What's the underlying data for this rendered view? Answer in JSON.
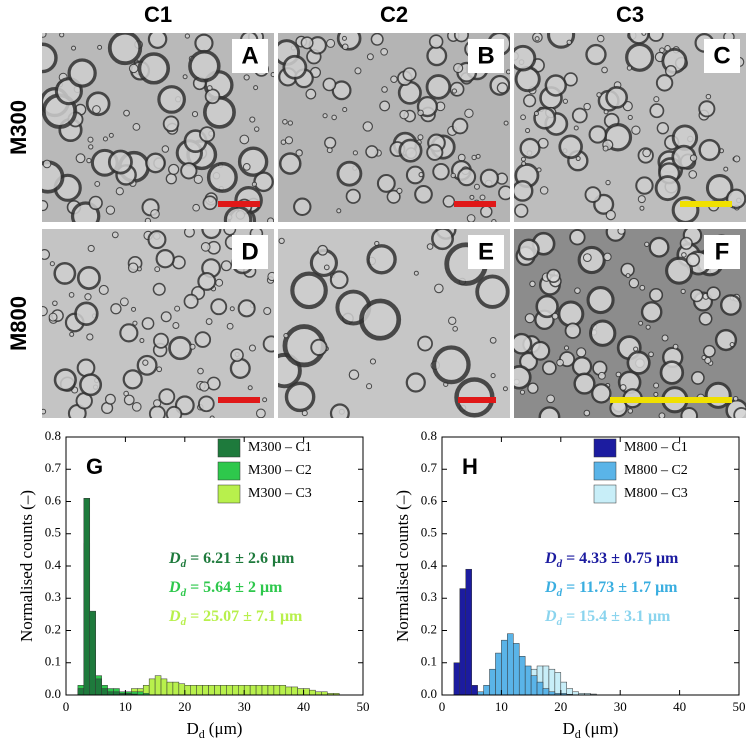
{
  "panels": {
    "columns": [
      "C1",
      "C2",
      "C3"
    ],
    "rows": [
      "M300",
      "M800"
    ],
    "letters": [
      "A",
      "B",
      "C",
      "D",
      "E",
      "F"
    ]
  },
  "chart_data": [
    {
      "type": "histogram",
      "panel": "G",
      "xlabel": {
        "symbol": "D",
        "sub": "d",
        "unit": "(μm)"
      },
      "ylabel": "Normalised counts (–)",
      "xlim": [
        0,
        50
      ],
      "xticks": [
        0,
        10,
        20,
        30,
        40,
        50
      ],
      "ylim": [
        0,
        0.8
      ],
      "yticks": [
        {
          "value": 0,
          "label": "0.0"
        },
        0.1,
        0.2,
        0.3,
        0.4,
        0.5,
        0.6,
        0.7,
        0.8
      ],
      "series": [
        {
          "name": "M300 – C1",
          "color": "#1e7a3c",
          "bins": [
            2,
            3,
            4,
            5,
            6,
            7,
            8,
            9,
            10,
            11,
            12
          ],
          "values": [
            0.02,
            0.61,
            0.26,
            0.05,
            0.02,
            0.01,
            0.01,
            0.005,
            0.005,
            0.003
          ]
        },
        {
          "name": "M300 – C2",
          "color": "#2ec84c",
          "bins": [
            2,
            3,
            4,
            5,
            6,
            7,
            8,
            9,
            10,
            11,
            12,
            13,
            14
          ],
          "values": [
            0.03,
            0.47,
            0.14,
            0.06,
            0.03,
            0.02,
            0.02,
            0.01,
            0.01,
            0.01,
            0.01,
            0.005
          ]
        },
        {
          "name": "M300 – C3",
          "color": "#b8f04c",
          "bins": [
            10,
            11,
            12,
            13,
            14,
            15,
            16,
            17,
            18,
            19,
            20,
            21,
            22,
            23,
            24,
            25,
            26,
            27,
            28,
            29,
            30,
            31,
            32,
            33,
            34,
            35,
            36,
            37,
            38,
            39,
            40,
            41,
            42,
            43,
            44,
            45,
            46
          ],
          "values": [
            0.01,
            0.02,
            0.02,
            0.03,
            0.05,
            0.06,
            0.05,
            0.04,
            0.04,
            0.035,
            0.03,
            0.03,
            0.03,
            0.03,
            0.03,
            0.03,
            0.03,
            0.03,
            0.03,
            0.03,
            0.03,
            0.03,
            0.03,
            0.03,
            0.03,
            0.03,
            0.03,
            0.025,
            0.025,
            0.02,
            0.02,
            0.015,
            0.01,
            0.01,
            0.005,
            0.005
          ]
        }
      ],
      "annotations": [
        {
          "symbol": "D",
          "sub": "d",
          "text": " = 6.21 ± 2.6 μm",
          "color": "#1e7a3c"
        },
        {
          "symbol": "D",
          "sub": "d",
          "text": " = 5.64 ± 2 μm",
          "color": "#2ec84c"
        },
        {
          "symbol": "D",
          "sub": "d",
          "text": " = 25.07 ± 7.1 μm",
          "color": "#b8f04c"
        }
      ]
    },
    {
      "type": "histogram",
      "panel": "H",
      "xlabel": {
        "symbol": "D",
        "sub": "d",
        "unit": "(μm)"
      },
      "ylabel": "Normalised counts (–)",
      "xlim": [
        0,
        50
      ],
      "xticks": [
        0,
        10,
        20,
        30,
        40,
        50
      ],
      "ylim": [
        0,
        0.8
      ],
      "yticks": [
        {
          "value": 0,
          "label": "0.0"
        },
        0.1,
        0.2,
        0.3,
        0.4,
        0.5,
        0.6,
        0.7,
        0.8
      ],
      "series": [
        {
          "name": "M800 – C1",
          "color": "#1c1ca0",
          "bins": [
            2,
            3,
            4,
            5,
            6
          ],
          "values": [
            0.1,
            0.33,
            0.39,
            0.03
          ]
        },
        {
          "name": "M800 – C2",
          "color": "#5ab4e8",
          "bins": [
            6,
            7,
            8,
            9,
            10,
            11,
            12,
            13,
            14,
            15,
            16,
            17,
            18,
            19,
            20,
            21,
            22
          ],
          "values": [
            0.01,
            0.03,
            0.08,
            0.13,
            0.17,
            0.19,
            0.16,
            0.12,
            0.09,
            0.06,
            0.04,
            0.02,
            0.01,
            0.005,
            0.005,
            0.002
          ]
        },
        {
          "name": "M800 – C3",
          "color": "#c8eef8",
          "bins": [
            10,
            11,
            12,
            13,
            14,
            15,
            16,
            17,
            18,
            19,
            20,
            21,
            22,
            23,
            24,
            25,
            26
          ],
          "values": [
            0.01,
            0.02,
            0.04,
            0.06,
            0.08,
            0.08,
            0.09,
            0.09,
            0.08,
            0.07,
            0.04,
            0.02,
            0.01,
            0.005,
            0.005,
            0.003
          ]
        }
      ],
      "annotations": [
        {
          "symbol": "D",
          "sub": "d",
          "text": " = 4.33 ± 0.75 μm",
          "color": "#1c1ca0"
        },
        {
          "symbol": "D",
          "sub": "d",
          "text": " = 11.73 ± 1.7 μm",
          "color": "#3aaee0"
        },
        {
          "symbol": "D",
          "sub": "d",
          "text": " = 15.4 ± 3.1 μm",
          "color": "#8ad4ee"
        }
      ]
    }
  ]
}
